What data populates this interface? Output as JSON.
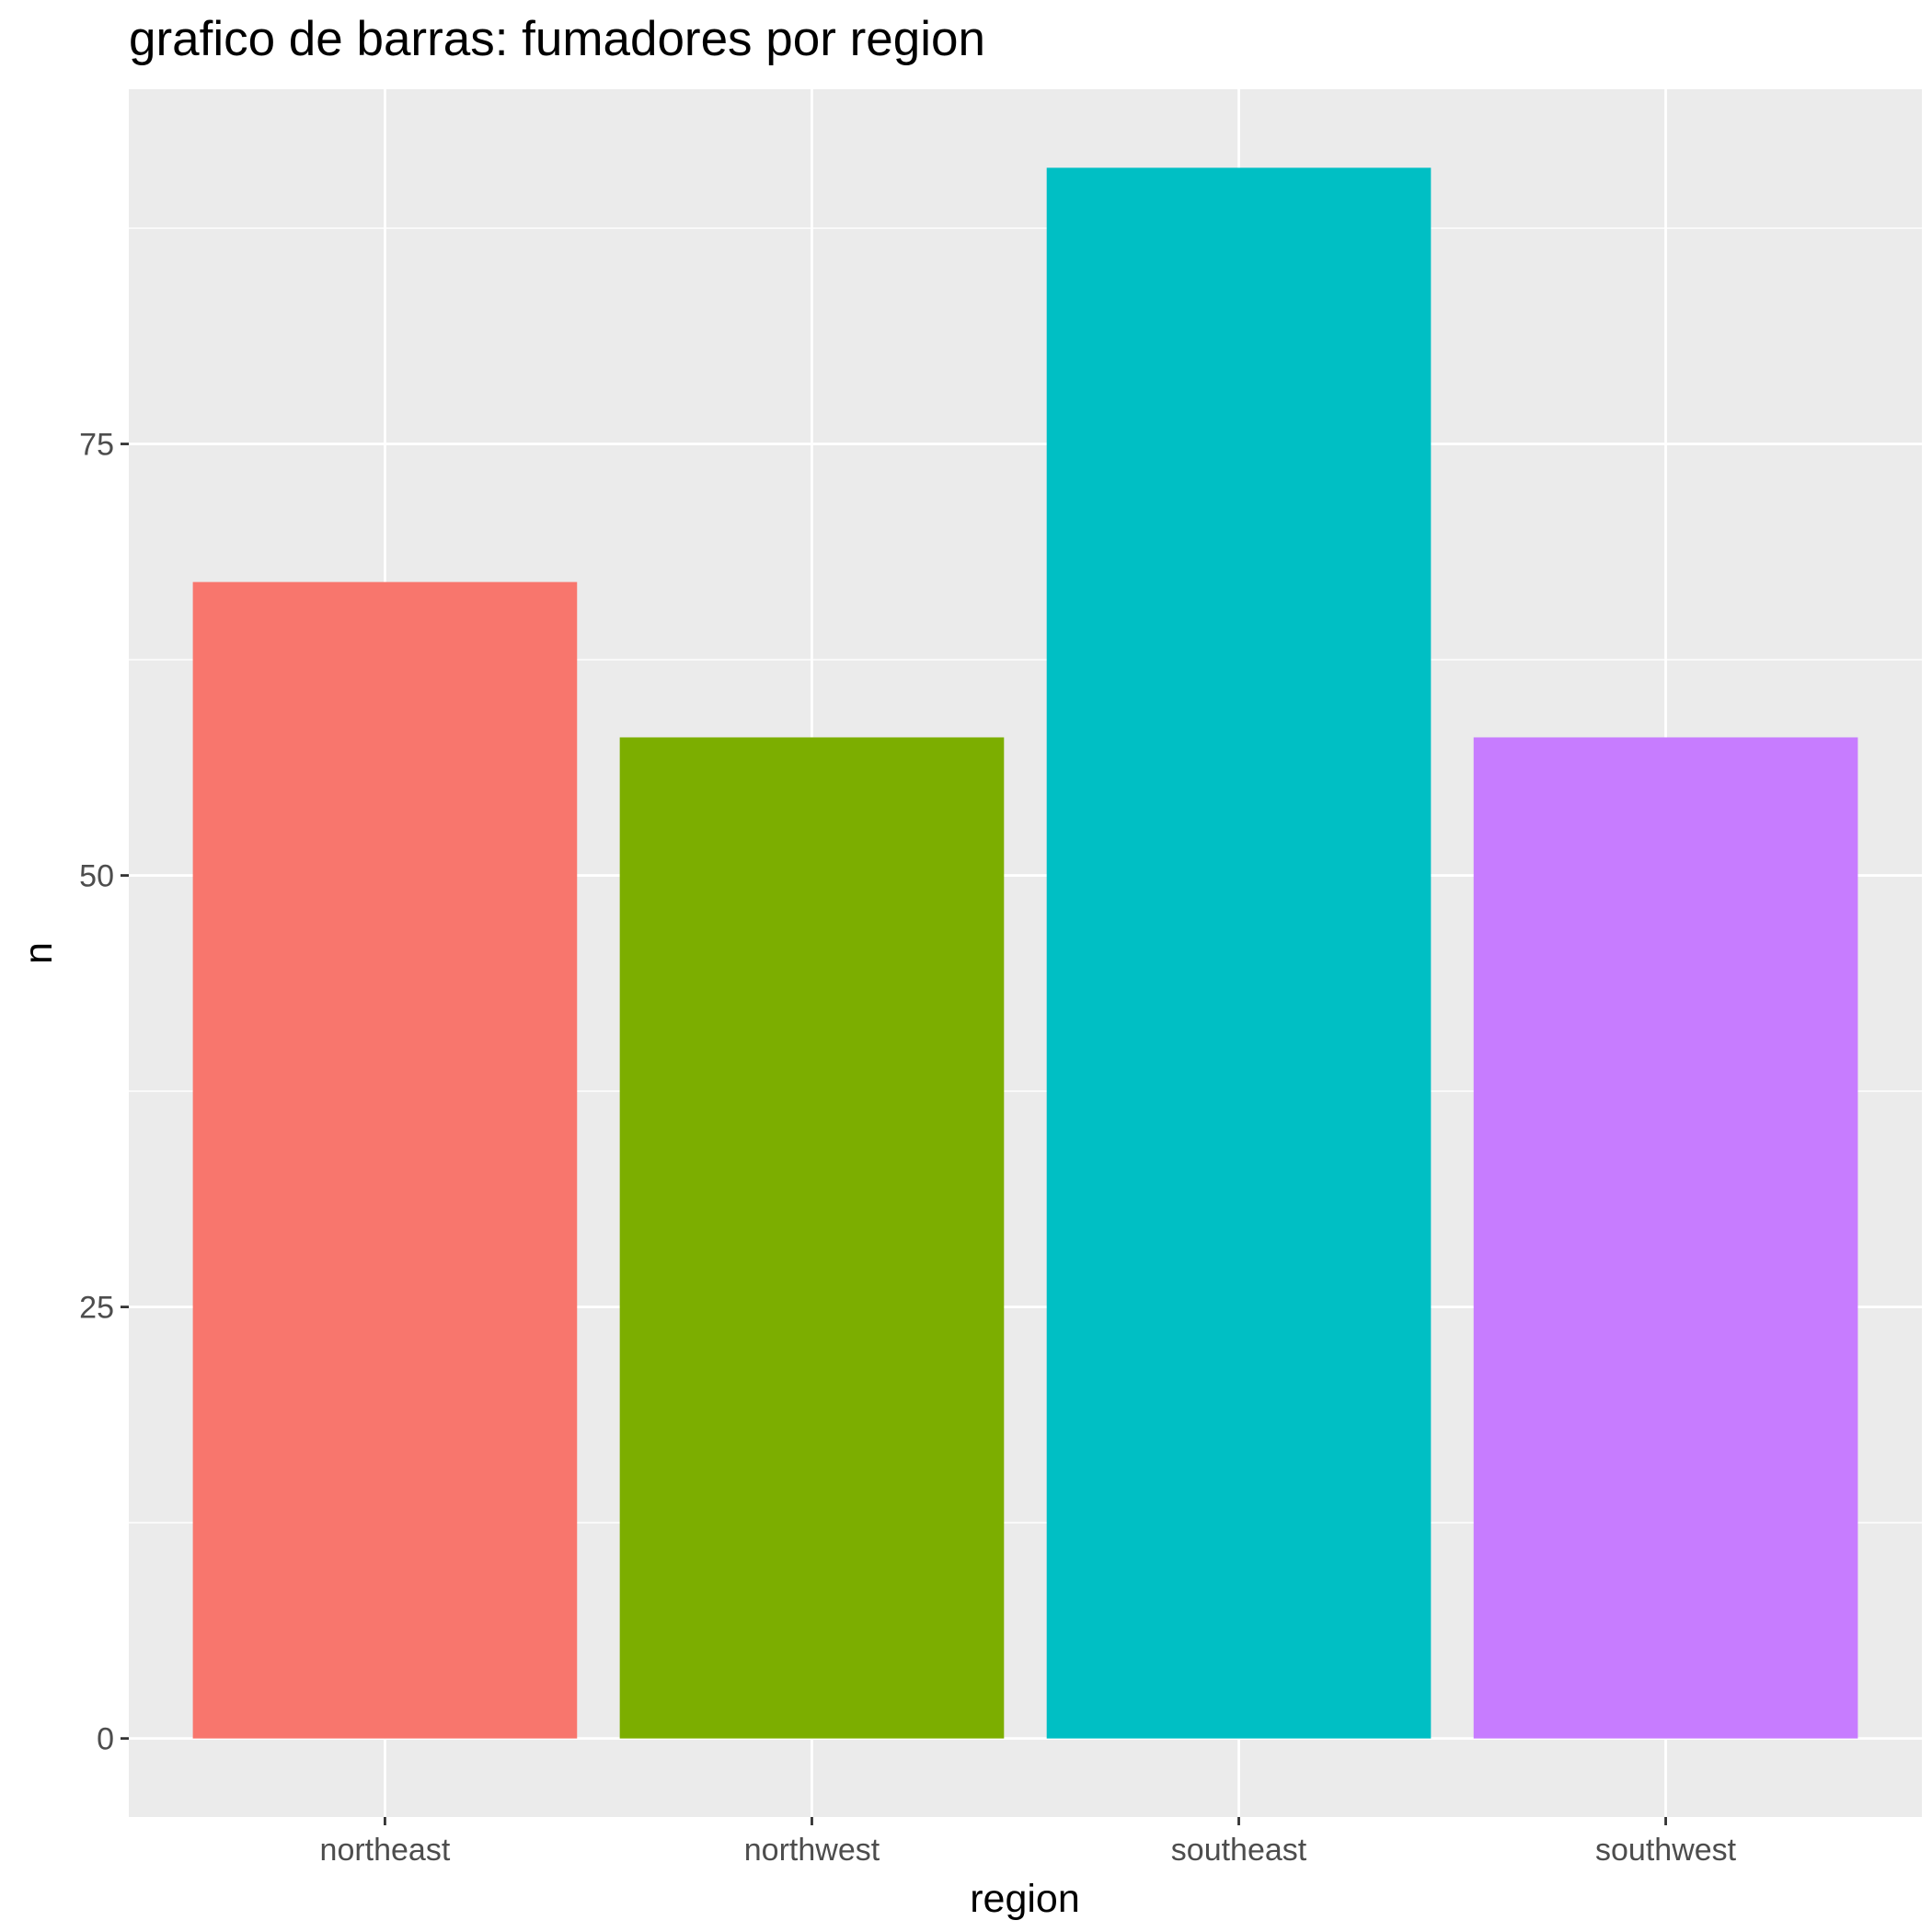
{
  "chart_data": {
    "type": "bar",
    "title": "grafico de barras: fumadores por region",
    "xlabel": "region",
    "ylabel": "n",
    "categories": [
      "northeast",
      "northwest",
      "southeast",
      "southwest"
    ],
    "values": [
      67,
      58,
      91,
      58
    ],
    "colors": [
      "#F8766D",
      "#7CAE00",
      "#00BFC4",
      "#C77CFF"
    ],
    "yticks": [
      0,
      25,
      50,
      75
    ],
    "yticklabels": [
      "0",
      "25",
      "50",
      "75"
    ],
    "ylim": [
      -4.55,
      95.55
    ],
    "grid": true,
    "panel_background": "#EBEBEB",
    "gridline_color": "#FFFFFF",
    "legend": "none"
  }
}
